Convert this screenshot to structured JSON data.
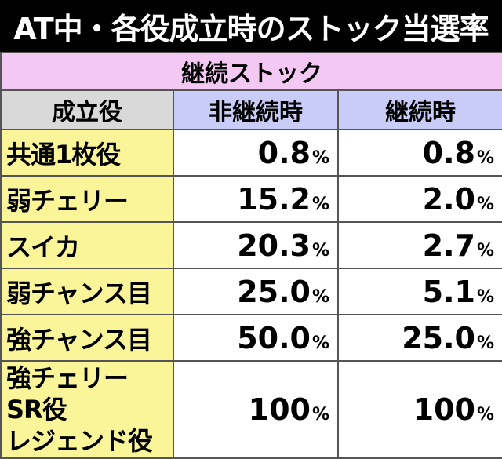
{
  "title": "AT中・各役成立時のストック当選率",
  "table": {
    "group_header": "継続ストック",
    "headers": [
      "成立役",
      "非継続時",
      "継続時"
    ],
    "percent_sign": "%",
    "rows": [
      {
        "role": [
          "共通1枚役"
        ],
        "non_continue": "0.8",
        "continue": "0.8"
      },
      {
        "role": [
          "弱チェリー"
        ],
        "non_continue": "15.2",
        "continue": "2.0"
      },
      {
        "role": [
          "スイカ"
        ],
        "non_continue": "20.3",
        "continue": "2.7"
      },
      {
        "role": [
          "弱チャンス目"
        ],
        "non_continue": "25.0",
        "continue": "5.1"
      },
      {
        "role": [
          "強チャンス目"
        ],
        "non_continue": "50.0",
        "continue": "25.0"
      },
      {
        "role": [
          "強チェリー",
          "SR役",
          "レジェンド役"
        ],
        "non_continue": "100",
        "continue": "100"
      }
    ]
  },
  "colors": {
    "title_bg": "#000000",
    "group_header_bg": "#f3c8f3",
    "role_header_bg": "#d9d9d9",
    "value_header_bg": "#c9ccf7",
    "role_cell_bg": "#fbf59a"
  }
}
